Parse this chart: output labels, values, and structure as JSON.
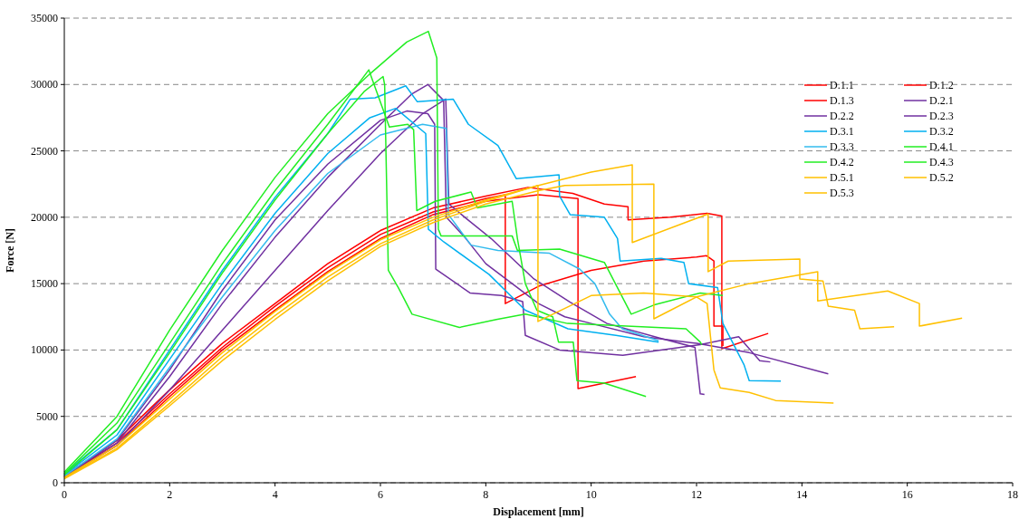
{
  "chart_data": {
    "type": "line",
    "xlabel": "Displacement [mm]",
    "ylabel": "Force [N]",
    "xlim": [
      0,
      18
    ],
    "xticks": [
      0,
      2,
      4,
      6,
      8,
      10,
      12,
      14,
      16,
      18
    ],
    "ylim": [
      0,
      35000
    ],
    "yticks": [
      0,
      5000,
      10000,
      15000,
      20000,
      25000,
      30000,
      35000
    ],
    "grid": "y",
    "legend": "top right",
    "series": [
      {
        "name": "D.1.1",
        "color": "#ff0000",
        "x": [
          0,
          1,
          2,
          3,
          4,
          5,
          6,
          7,
          8,
          8.8,
          9.65,
          10.25,
          10.7,
          10.7,
          11.5,
          12.2,
          12.48,
          12.48,
          13.36
        ],
        "values": [
          500,
          3200,
          7000,
          10500,
          13500,
          16500,
          19000,
          20700,
          21600,
          22250,
          21800,
          21000,
          20800,
          19800,
          20000,
          20300,
          20100,
          10100,
          11250
        ]
      },
      {
        "name": "D.1.2",
        "color": "#ff0000",
        "x": [
          0,
          1,
          2,
          3,
          4,
          5,
          6,
          7,
          8,
          8.37,
          8.37,
          9,
          10,
          11,
          12,
          12.19,
          12.33,
          12.33,
          12.5,
          12.5
        ],
        "values": [
          450,
          3000,
          6700,
          10200,
          13300,
          16200,
          18700,
          20400,
          21400,
          21700,
          13500,
          14800,
          16000,
          16700,
          17000,
          17100,
          16700,
          11800,
          11800,
          10300
        ]
      },
      {
        "name": "D.1.3",
        "color": "#ff0000",
        "x": [
          0,
          1,
          2,
          3,
          4,
          5,
          6,
          7,
          8,
          9,
          9.75,
          9.75,
          10.85
        ],
        "values": [
          400,
          2800,
          6500,
          10000,
          13000,
          15900,
          18400,
          20200,
          21200,
          21700,
          21400,
          7100,
          8000
        ]
      },
      {
        "name": "D.2.1",
        "color": "#7030a0",
        "x": [
          0,
          1,
          2,
          3,
          4,
          5,
          6,
          6.6,
          6.9,
          7.2,
          7.25,
          7.6,
          8,
          8.5,
          9,
          9.5,
          10,
          11,
          12,
          13,
          14.5
        ],
        "values": [
          600,
          3000,
          8000,
          13500,
          18500,
          23000,
          27000,
          29300,
          30000,
          28800,
          20000,
          18500,
          16500,
          15000,
          13500,
          12500,
          12000,
          11000,
          10500,
          9800,
          8200
        ]
      },
      {
        "name": "D.2.2",
        "color": "#7030a0",
        "x": [
          0,
          1,
          2,
          3,
          4,
          5,
          6,
          6.5,
          6.9,
          7.03,
          7.05,
          7.7,
          8.3,
          8.7,
          8.75,
          9.4,
          10.6,
          12.07,
          12.8,
          13.2,
          13.4
        ],
        "values": [
          500,
          3200,
          8500,
          14500,
          19800,
          24000,
          27300,
          28000,
          27800,
          27000,
          16100,
          14300,
          14100,
          13650,
          11100,
          10000,
          9600,
          10400,
          11000,
          9200,
          9100
        ]
      },
      {
        "name": "D.2.3",
        "color": "#7030a0",
        "x": [
          0,
          1,
          2,
          3,
          4,
          5,
          6,
          6.8,
          7.24,
          7.3,
          7.6,
          8.1,
          8.9,
          9.6,
          10.3,
          11.3,
          11.97,
          12.07,
          12.15
        ],
        "values": [
          500,
          2800,
          7000,
          11500,
          16000,
          20500,
          24800,
          27800,
          28900,
          21000,
          20000,
          18400,
          15400,
          13600,
          12000,
          10900,
          10200,
          6700,
          6650
        ]
      },
      {
        "name": "D.3.1",
        "color": "#00b0f0",
        "x": [
          0,
          1,
          2,
          3,
          4,
          5,
          5.43,
          5.9,
          6.48,
          6.7,
          7.38,
          7.67,
          8.23,
          8.58,
          9.39,
          9.4,
          9.6,
          10.25,
          10.5,
          10.55,
          11.33,
          11.76,
          11.85,
          12.4,
          12.5,
          12.9,
          13.0,
          13.6
        ],
        "values": [
          700,
          4000,
          10000,
          16000,
          21500,
          26300,
          28900,
          29000,
          29900,
          28700,
          28900,
          27000,
          25400,
          22900,
          23200,
          21600,
          20200,
          20000,
          18400,
          16700,
          16900,
          16600,
          15000,
          14700,
          12000,
          8900,
          7700,
          7650
        ]
      },
      {
        "name": "D.3.2",
        "color": "#00b0f0",
        "x": [
          0,
          1,
          2,
          3,
          4,
          5,
          5.8,
          6.29,
          6.86,
          6.91,
          7.2,
          8.06,
          8.75,
          9.56,
          10.47,
          11.28
        ],
        "values": [
          600,
          3600,
          9300,
          15000,
          20300,
          24800,
          27500,
          28200,
          26300,
          19100,
          18150,
          15700,
          13000,
          11600,
          11100,
          10600
        ]
      },
      {
        "name": "D.3.3",
        "color": "#33bbee",
        "x": [
          0,
          1,
          2,
          3,
          4,
          5,
          6,
          6.8,
          7.25,
          7.29,
          7.72,
          8.23,
          9.2,
          9.78,
          10.07,
          10.35,
          10.59,
          11.28
        ],
        "values": [
          500,
          3300,
          8700,
          14000,
          19000,
          23300,
          26200,
          27000,
          26700,
          20200,
          17900,
          17500,
          17300,
          16100,
          15000,
          12700,
          11600,
          10700
        ]
      },
      {
        "name": "D.4.1",
        "color": "#22ee22",
        "x": [
          0,
          1,
          2,
          3,
          4,
          5,
          5.8,
          6.5,
          6.91,
          7.07,
          7.1,
          7.15,
          8.5,
          8.6,
          9.4,
          10.25,
          10.76,
          11.2,
          12.07,
          12.5
        ],
        "values": [
          800,
          5000,
          11500,
          17500,
          23000,
          27800,
          30800,
          33200,
          34000,
          32000,
          19100,
          18600,
          18600,
          17500,
          17600,
          16600,
          12700,
          13400,
          14300,
          14100
        ]
      },
      {
        "name": "D.4.2",
        "color": "#22ee22",
        "x": [
          0,
          1,
          2,
          3,
          4,
          5,
          5.78,
          6.17,
          6.52,
          6.63,
          6.69,
          7.04,
          7.72,
          7.84,
          8.5,
          8.6,
          8.75,
          8.97,
          9.27,
          9.38,
          9.66,
          9.73,
          10.25,
          11.04
        ],
        "values": [
          700,
          4500,
          10500,
          16500,
          22000,
          27000,
          31100,
          26800,
          27000,
          26600,
          20500,
          21200,
          21900,
          20700,
          21200,
          18400,
          15000,
          13000,
          12500,
          10600,
          10600,
          7700,
          7500,
          6500
        ]
      },
      {
        "name": "D.4.3",
        "color": "#22ee22",
        "x": [
          0,
          1,
          2,
          3,
          4,
          5,
          5.7,
          6.05,
          6.08,
          6.15,
          6.34,
          6.6,
          7.5,
          8.2,
          8.75,
          9.55,
          11.8,
          12.07,
          12.1
        ],
        "values": [
          600,
          4000,
          9800,
          15800,
          21300,
          26300,
          29500,
          30600,
          30000,
          16000,
          14700,
          12700,
          11700,
          12300,
          12700,
          12000,
          11600,
          10600,
          10400
        ]
      },
      {
        "name": "D.5.1",
        "color": "#ffc000",
        "x": [
          0,
          1,
          2,
          3,
          4,
          5,
          6,
          7,
          8,
          9,
          10,
          10.78,
          10.78,
          12.22,
          12.22,
          12.6,
          13.96,
          13.96,
          14.4,
          14.5,
          15.0,
          15.1,
          15.75
        ],
        "values": [
          400,
          2800,
          6300,
          9800,
          12900,
          15800,
          18300,
          20000,
          21300,
          22400,
          23400,
          23950,
          18100,
          20250,
          15900,
          16700,
          16850,
          15350,
          15200,
          13300,
          13000,
          11600,
          11750
        ]
      },
      {
        "name": "D.5.2",
        "color": "#ffc000",
        "x": [
          0,
          1,
          2,
          3,
          4,
          5,
          6,
          7,
          8,
          8.99,
          8.99,
          10,
          11,
          12,
          12.2,
          12.33,
          12.45,
          13,
          13.5,
          14.6
        ],
        "values": [
          350,
          2600,
          6000,
          9500,
          12600,
          15500,
          18000,
          19800,
          21200,
          22400,
          12150,
          14100,
          14300,
          14000,
          13500,
          8500,
          7150,
          6800,
          6200,
          6000
        ]
      },
      {
        "name": "D.5.3",
        "color": "#ffc000",
        "x": [
          0,
          1,
          2,
          3,
          4,
          5,
          6,
          7,
          8,
          9,
          9.5,
          11.19,
          11.19,
          12,
          13,
          14.3,
          14.3,
          15.63,
          16.23,
          16.23,
          17.04
        ],
        "values": [
          300,
          2500,
          5800,
          9200,
          12300,
          15200,
          17800,
          19600,
          21000,
          22000,
          22400,
          22500,
          12350,
          14000,
          15000,
          15900,
          13700,
          14450,
          13500,
          11800,
          12400
        ]
      }
    ]
  }
}
